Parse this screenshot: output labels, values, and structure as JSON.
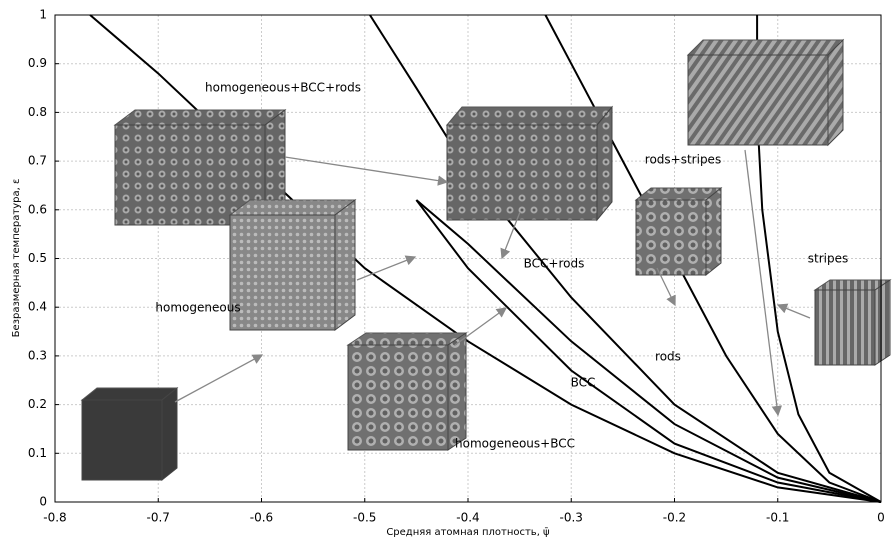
{
  "chart_data": {
    "type": "line",
    "xlabel": "Средняя атомная плотность, ψ̄",
    "ylabel": "Безразмерная температура, ε",
    "xlim": [
      -0.8,
      0
    ],
    "xticks": [
      -0.8,
      -0.7,
      -0.6,
      -0.5,
      -0.4,
      -0.3,
      -0.2,
      -0.1,
      0
    ],
    "ylim": [
      0,
      1
    ],
    "yticks": [
      0,
      0.1,
      0.2,
      0.3,
      0.4,
      0.5,
      0.6,
      0.7,
      0.8,
      0.9,
      1
    ],
    "grid": true,
    "series": [
      {
        "color": "#000000",
        "x": [
          -0.766,
          -0.7,
          -0.6,
          -0.5,
          -0.4,
          -0.3,
          -0.2,
          -0.1,
          0
        ],
        "values": [
          1,
          0.88,
          0.68,
          0.48,
          0.33,
          0.2,
          0.1,
          0.03,
          0
        ]
      },
      {
        "color": "#000000",
        "x": [
          -0.45,
          -0.4,
          -0.3,
          -0.2,
          -0.1,
          0
        ],
        "values": [
          0.62,
          0.48,
          0.27,
          0.12,
          0.04,
          0
        ]
      },
      {
        "color": "#000000",
        "x": [
          -0.45,
          -0.4,
          -0.3,
          -0.2,
          -0.1,
          0
        ],
        "values": [
          0.62,
          0.53,
          0.33,
          0.16,
          0.05,
          0
        ]
      },
      {
        "color": "#000000",
        "x": [
          -0.495,
          -0.45,
          -0.4,
          -0.3,
          -0.2,
          -0.1,
          0
        ],
        "values": [
          1,
          0.85,
          0.68,
          0.42,
          0.2,
          0.06,
          0
        ]
      },
      {
        "color": "#000000",
        "x": [
          -0.325,
          -0.3,
          -0.25,
          -0.2,
          -0.15,
          -0.1,
          -0.05,
          0
        ],
        "values": [
          1,
          0.9,
          0.7,
          0.5,
          0.3,
          0.14,
          0.04,
          0
        ]
      },
      {
        "color": "#000000",
        "x": [
          -0.12,
          -0.12,
          -0.115,
          -0.1,
          -0.08,
          -0.05,
          0
        ],
        "values": [
          1,
          0.8,
          0.6,
          0.35,
          0.18,
          0.06,
          0
        ]
      }
    ],
    "annotations": [
      "homogeneous+BCC+rods",
      "rods+stripes",
      "stripes",
      "BCC+rods",
      "homogeneous",
      "rods",
      "BCC",
      "homogeneous+BCC"
    ]
  }
}
